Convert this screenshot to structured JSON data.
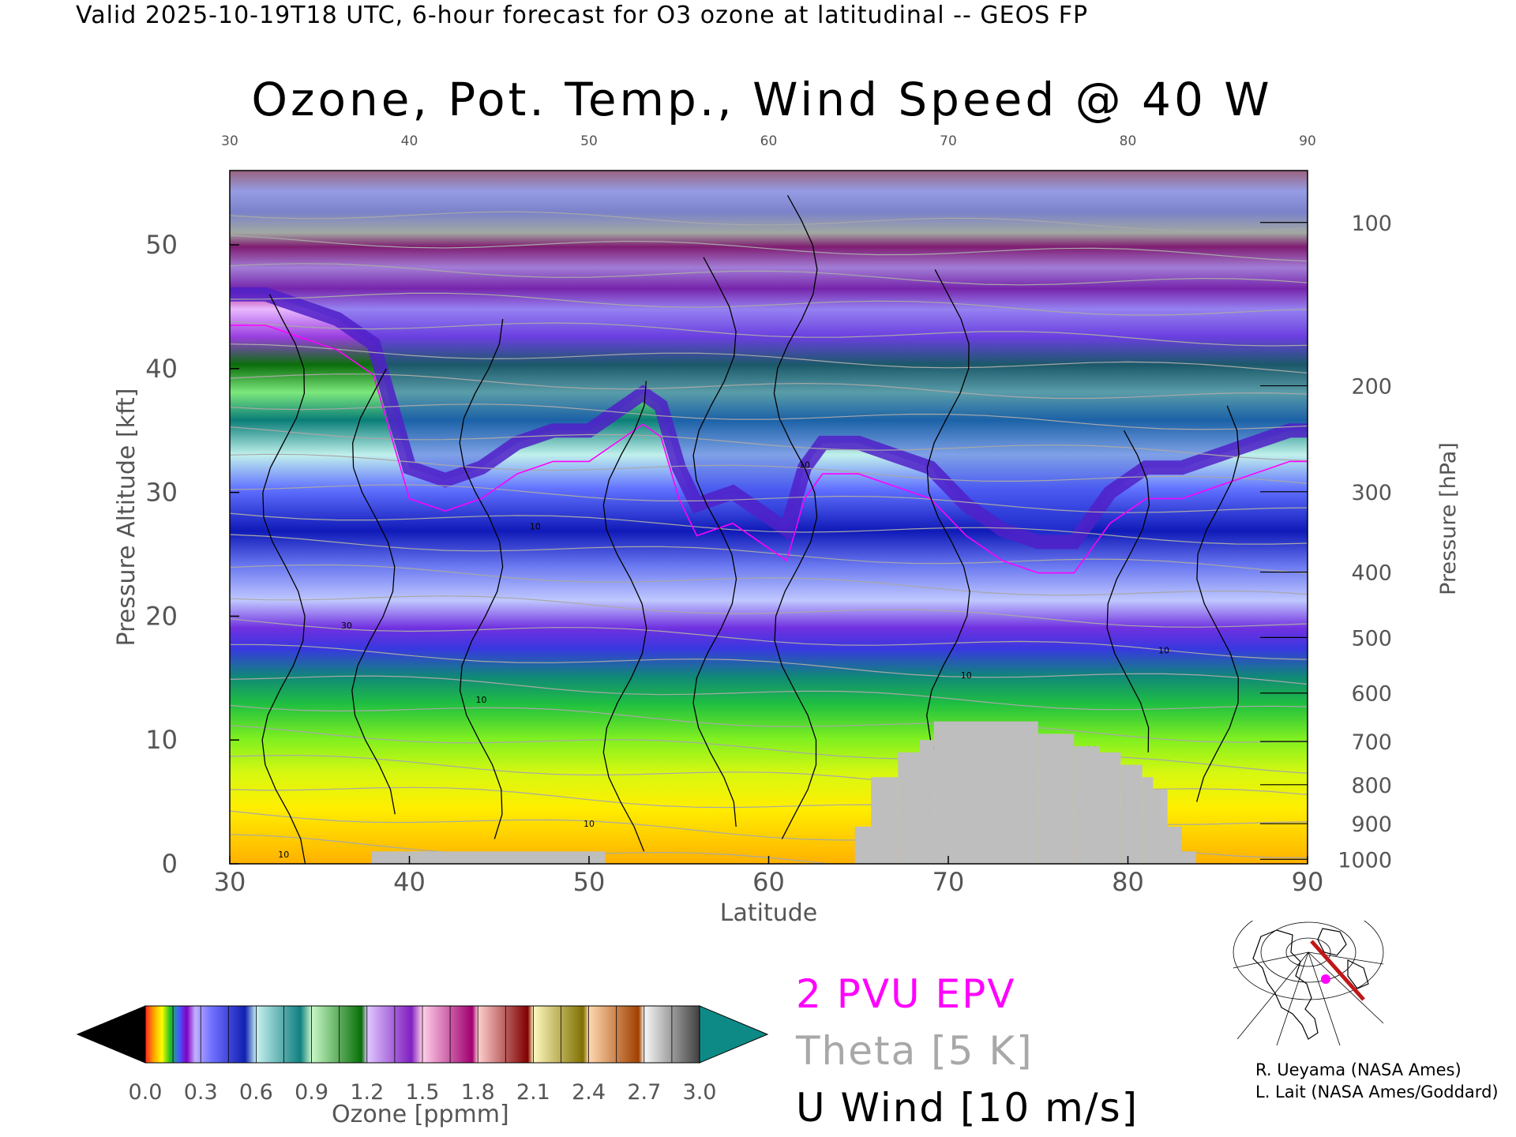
{
  "header": {
    "valid_line": "Valid 2025-10-19T18 UTC, 6-hour forecast for O3 ozone at latitudinal -- GEOS FP"
  },
  "chart_data": {
    "type": "heatmap",
    "title": "Ozone, Pot. Temp., Wind Speed @ 40 W",
    "xlabel": "Latitude",
    "ylabel": "Pressure Altitude [kft]",
    "ylabel_right": "Pressure [hPa]",
    "xlim": [
      30,
      90
    ],
    "ylim": [
      0,
      56
    ],
    "x_ticks": [
      30,
      40,
      50,
      60,
      70,
      80,
      90
    ],
    "x_tick_labels": [
      "30",
      "40",
      "50",
      "60",
      "70",
      "80",
      "90"
    ],
    "y_ticks": [
      0,
      10,
      20,
      30,
      40,
      50
    ],
    "y_tick_labels": [
      "0",
      "10",
      "20",
      "30",
      "40",
      "50"
    ],
    "pressure_ticks": [
      {
        "hpa": 100,
        "label": "100"
      },
      {
        "hpa": 200,
        "label": "200"
      },
      {
        "hpa": 300,
        "label": "300"
      },
      {
        "hpa": 400,
        "label": "400"
      },
      {
        "hpa": 500,
        "label": "500"
      },
      {
        "hpa": 600,
        "label": "600"
      },
      {
        "hpa": 700,
        "label": "700"
      },
      {
        "hpa": 800,
        "label": "800"
      },
      {
        "hpa": 900,
        "label": "900"
      },
      {
        "hpa": 1000,
        "label": "1000"
      }
    ],
    "tropopause_kft": [
      [
        30,
        46
      ],
      [
        32,
        46
      ],
      [
        34,
        45
      ],
      [
        36,
        44
      ],
      [
        38,
        42
      ],
      [
        40,
        32
      ],
      [
        42,
        31
      ],
      [
        44,
        32
      ],
      [
        46,
        34
      ],
      [
        48,
        35
      ],
      [
        50,
        35
      ],
      [
        52,
        37
      ],
      [
        53,
        38
      ],
      [
        54,
        37
      ],
      [
        55,
        32
      ],
      [
        56,
        29
      ],
      [
        58,
        30
      ],
      [
        60,
        28
      ],
      [
        61,
        27
      ],
      [
        62,
        32
      ],
      [
        63,
        34
      ],
      [
        65,
        34
      ],
      [
        67,
        33
      ],
      [
        69,
        32
      ],
      [
        71,
        29
      ],
      [
        73,
        27
      ],
      [
        75,
        26
      ],
      [
        77,
        26
      ],
      [
        79,
        30
      ],
      [
        81,
        32
      ],
      [
        83,
        32
      ],
      [
        85,
        33
      ],
      [
        87,
        34
      ],
      [
        89,
        35
      ],
      [
        90,
        35
      ]
    ],
    "topography": [
      {
        "lat": [
          37.9,
          50.9
        ],
        "kft": 1
      },
      {
        "lat": [
          64.8,
          65.7
        ],
        "kft": 3
      },
      {
        "lat": [
          65.7,
          67.2
        ],
        "kft": 7
      },
      {
        "lat": [
          67.2,
          68.4
        ],
        "kft": 9
      },
      {
        "lat": [
          68.4,
          69.2
        ],
        "kft": 10
      },
      {
        "lat": [
          69.2,
          75.0
        ],
        "kft": 11.5
      },
      {
        "lat": [
          75.0,
          77.0
        ],
        "kft": 10.5
      },
      {
        "lat": [
          77.0,
          78.4
        ],
        "kft": 9.5
      },
      {
        "lat": [
          78.4,
          79.6
        ],
        "kft": 9
      },
      {
        "lat": [
          79.6,
          80.8
        ],
        "kft": 8
      },
      {
        "lat": [
          80.8,
          81.4
        ],
        "kft": 7
      },
      {
        "lat": [
          81.4,
          82.2
        ],
        "kft": 6
      },
      {
        "lat": [
          82.2,
          83.0
        ],
        "kft": 3
      },
      {
        "lat": [
          83.0,
          83.8
        ],
        "kft": 1
      }
    ],
    "wind_contour_labels": [
      {
        "text": "10",
        "lat": 33,
        "kft": 0.5
      },
      {
        "text": "30",
        "lat": 36.5,
        "kft": 19
      },
      {
        "text": "10",
        "lat": 44,
        "kft": 13
      },
      {
        "text": "10",
        "lat": 47,
        "kft": 27
      },
      {
        "text": "10",
        "lat": 50,
        "kft": 3
      },
      {
        "text": "10",
        "lat": 62,
        "kft": 32
      },
      {
        "text": "10",
        "lat": 71,
        "kft": 15
      },
      {
        "text": "10",
        "lat": 78,
        "kft": 9
      },
      {
        "text": "10",
        "lat": 82,
        "kft": 17
      }
    ],
    "colorbar": {
      "label": "Ozone [ppmm]",
      "range": [
        0.0,
        3.0
      ],
      "tick_labels": [
        "0.0",
        "0.3",
        "0.6",
        "0.9",
        "1.2",
        "1.5",
        "1.8",
        "2.1",
        "2.4",
        "2.7",
        "3.0"
      ],
      "min_color": "#000000",
      "max_color": "#0e8a86"
    },
    "legend": [
      {
        "label": "2 PVU EPV",
        "color": "#ff00ff"
      },
      {
        "label": "Theta [5 K]",
        "color": "#a8a8a8"
      },
      {
        "label": "U Wind [10 m/s]",
        "color": "#000000"
      }
    ]
  },
  "credits": {
    "line1": "R. Ueyama (NASA Ames)",
    "line2": "L. Lait (NASA Ames/Goddard)"
  },
  "colors": {
    "topography": "#bebebe",
    "epv": "#ff00ff",
    "theta": "#a8a8a8",
    "wind": "#000000"
  }
}
